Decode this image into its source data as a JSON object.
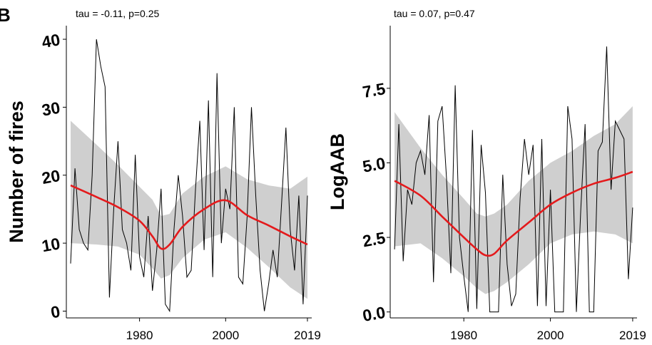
{
  "figure": {
    "panel_letter": "B",
    "colors": {
      "raw_series": "#000000",
      "trend": "#e41a1c",
      "ribbon": "#cccccc",
      "axis": "#000000"
    }
  },
  "chart_data": [
    {
      "type": "line",
      "title": "tau = -0.11, p=0.25",
      "xlabel": "",
      "ylabel": "Number of fires",
      "xlim": [
        1963,
        2020
      ],
      "ylim": [
        -1,
        42
      ],
      "x_ticks": [
        1980,
        2000,
        2019
      ],
      "y_ticks": [
        0,
        10,
        20,
        30,
        40
      ],
      "x": [
        1964,
        1965,
        1966,
        1967,
        1968,
        1969,
        1970,
        1971,
        1972,
        1973,
        1974,
        1975,
        1976,
        1977,
        1978,
        1979,
        1980,
        1981,
        1982,
        1983,
        1984,
        1985,
        1986,
        1987,
        1988,
        1989,
        1990,
        1991,
        1992,
        1993,
        1994,
        1995,
        1996,
        1997,
        1998,
        1999,
        2000,
        2001,
        2002,
        2003,
        2004,
        2005,
        2006,
        2007,
        2008,
        2009,
        2010,
        2011,
        2012,
        2013,
        2014,
        2015,
        2016,
        2017,
        2018,
        2019
      ],
      "series": [
        {
          "kind": "observed",
          "values": [
            7,
            21,
            12,
            10,
            9,
            20,
            40,
            36,
            33,
            2,
            15,
            25,
            12,
            10,
            6,
            23,
            8,
            5,
            14,
            3,
            9,
            18,
            1,
            0,
            12,
            20,
            14,
            5,
            6,
            18,
            28,
            9,
            31,
            5,
            35,
            10,
            18,
            15,
            30,
            5,
            4,
            14,
            30,
            17,
            6,
            0,
            4,
            9,
            5,
            16,
            27,
            12,
            6,
            17,
            1,
            17
          ]
        },
        {
          "kind": "trend",
          "x": [
            1964,
            1970,
            1975,
            1980,
            1983,
            1985,
            1987,
            1990,
            1995,
            2000,
            2005,
            2010,
            2015,
            2019
          ],
          "values": [
            18.5,
            16.8,
            15.3,
            13.3,
            11.0,
            9.2,
            9.8,
            12.4,
            15.0,
            16.3,
            14.1,
            12.6,
            11.0,
            9.8
          ],
          "lower": [
            10.0,
            9.8,
            9.5,
            8.3,
            6.3,
            4.8,
            5.3,
            7.8,
            10.5,
            11.6,
            9.3,
            6.5,
            3.5,
            1.8
          ],
          "upper": [
            28.0,
            24.5,
            21.5,
            18.3,
            16.4,
            14.0,
            14.3,
            17.3,
            19.8,
            21.3,
            19.4,
            18.5,
            18.0,
            19.8
          ]
        }
      ]
    },
    {
      "type": "line",
      "title": "tau = 0.07, p=0.47",
      "xlabel": "",
      "ylabel": "LogAAB",
      "xlim": [
        1963,
        2020
      ],
      "ylim": [
        -0.2,
        9.6
      ],
      "x_ticks": [
        1980,
        2000,
        2019
      ],
      "y_ticks": [
        0.0,
        2.5,
        5.0,
        7.5
      ],
      "y_tick_labels": [
        "0.0",
        "2.5",
        "5.0",
        "7.5"
      ],
      "x": [
        1964,
        1965,
        1966,
        1967,
        1968,
        1969,
        1970,
        1971,
        1972,
        1973,
        1974,
        1975,
        1976,
        1977,
        1978,
        1979,
        1980,
        1981,
        1982,
        1983,
        1984,
        1985,
        1986,
        1987,
        1988,
        1989,
        1990,
        1991,
        1992,
        1993,
        1994,
        1995,
        1996,
        1997,
        1998,
        1999,
        2000,
        2001,
        2002,
        2003,
        2004,
        2005,
        2006,
        2007,
        2008,
        2009,
        2010,
        2011,
        2012,
        2013,
        2014,
        2015,
        2016,
        2017,
        2018,
        2019
      ],
      "series": [
        {
          "kind": "observed",
          "values": [
            2.1,
            6.3,
            1.7,
            4.1,
            3.6,
            5.0,
            5.4,
            4.6,
            6.6,
            1.0,
            6.4,
            6.9,
            4.5,
            1.3,
            7.6,
            2.5,
            1.2,
            0.0,
            6.1,
            0.1,
            5.6,
            4.0,
            0.0,
            0.0,
            0.0,
            4.6,
            1.6,
            0.2,
            0.6,
            3.8,
            5.8,
            4.6,
            5.6,
            0.2,
            5.8,
            0.2,
            4.1,
            0.0,
            0.0,
            0.0,
            6.9,
            5.8,
            0.0,
            3.4,
            6.3,
            0.0,
            0.0,
            5.4,
            5.7,
            8.9,
            4.1,
            6.4,
            6.1,
            5.8,
            1.1,
            3.5
          ]
        },
        {
          "kind": "trend",
          "x": [
            1964,
            1970,
            1975,
            1980,
            1983,
            1985,
            1987,
            1990,
            1995,
            2000,
            2005,
            2010,
            2015,
            2019
          ],
          "values": [
            4.4,
            3.9,
            3.2,
            2.5,
            2.1,
            1.9,
            1.95,
            2.4,
            3.0,
            3.6,
            4.0,
            4.3,
            4.5,
            4.7
          ],
          "lower": [
            2.2,
            2.3,
            1.8,
            1.2,
            0.8,
            0.6,
            0.7,
            1.0,
            1.6,
            2.3,
            2.6,
            2.7,
            2.6,
            2.3
          ],
          "upper": [
            6.7,
            5.5,
            4.6,
            3.8,
            3.3,
            3.2,
            3.3,
            3.6,
            4.4,
            5.0,
            5.4,
            5.9,
            6.3,
            6.9
          ]
        }
      ]
    }
  ]
}
